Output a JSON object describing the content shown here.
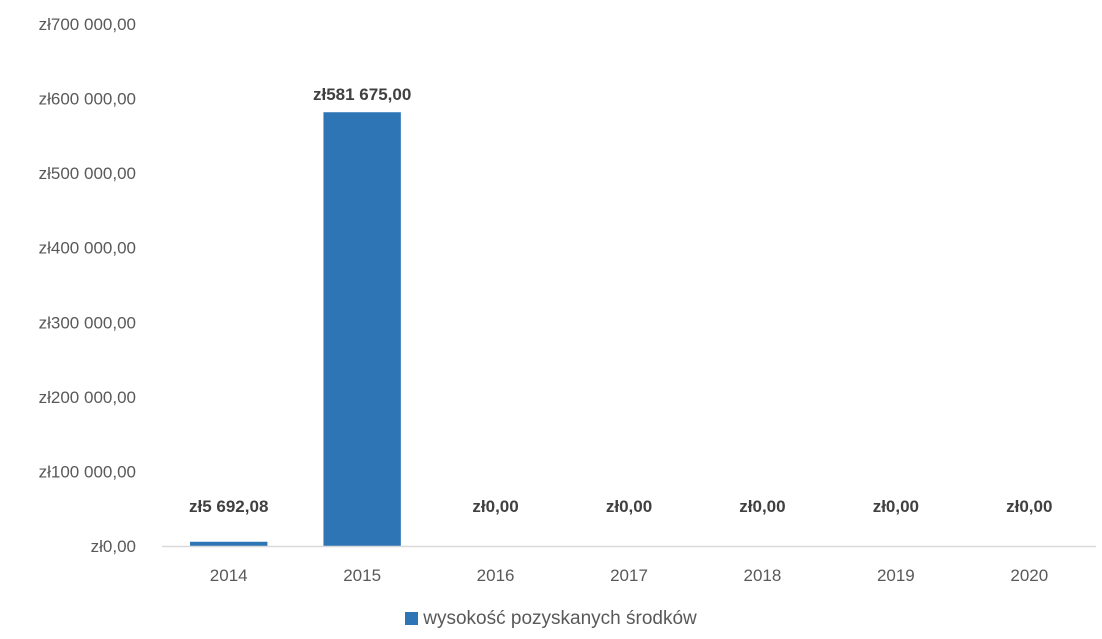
{
  "chart_data": {
    "type": "bar",
    "categories": [
      "2014",
      "2015",
      "2016",
      "2017",
      "2018",
      "2019",
      "2020"
    ],
    "series": [
      {
        "name": "wysokość pozyskanych środków",
        "values": [
          5692.08,
          581675.0,
          0,
          0,
          0,
          0,
          0
        ],
        "data_labels": [
          "zł5 692,08",
          "zł581 675,00",
          "zł0,00",
          "zł0,00",
          "zł0,00",
          "zł0,00",
          "zł0,00"
        ],
        "color": "#2e75b6"
      }
    ],
    "ylim": [
      0,
      700000
    ],
    "y_ticks": [
      0,
      100000,
      200000,
      300000,
      400000,
      500000,
      600000,
      700000
    ],
    "y_tick_labels": [
      "zł0,00",
      "zł100 000,00",
      "zł200 000,00",
      "zł300 000,00",
      "zł400 000,00",
      "zł500 000,00",
      "zł600 000,00",
      "zł700 000,00"
    ],
    "grid": false,
    "legend_position": "bottom",
    "axis_color": "#d9d9d9"
  },
  "legend": {
    "label": "wysokość pozyskanych środków"
  }
}
